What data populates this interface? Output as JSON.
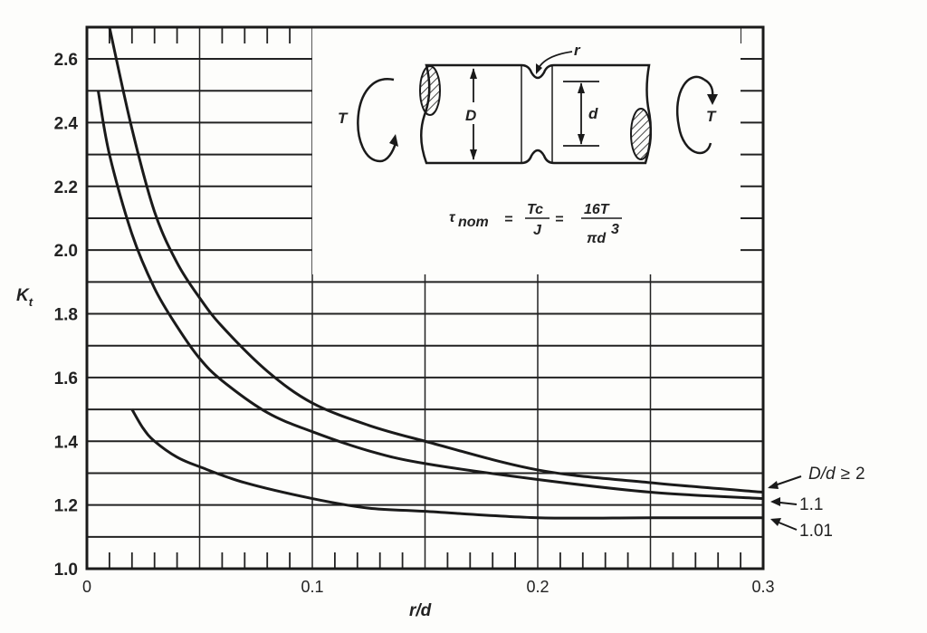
{
  "chart_data": {
    "type": "line",
    "title": "",
    "xlabel": "r/d",
    "ylabel": "K_t",
    "xlim": [
      0,
      0.3
    ],
    "ylim": [
      1.0,
      2.7
    ],
    "x_ticks": [
      "0",
      "0.1",
      "0.2",
      "0.3"
    ],
    "y_ticks": [
      "1.0",
      "1.2",
      "1.4",
      "1.6",
      "1.8",
      "2.0",
      "2.2",
      "2.4",
      "2.6"
    ],
    "grid": true,
    "legend_position": "right-annotations",
    "series": [
      {
        "name": "D/d ≥ 2",
        "label": "D/d ≥ 2",
        "x": [
          0.01,
          0.02,
          0.03,
          0.04,
          0.05,
          0.06,
          0.08,
          0.1,
          0.125,
          0.15,
          0.2,
          0.25,
          0.3
        ],
        "values": [
          2.7,
          2.38,
          2.12,
          1.96,
          1.85,
          1.76,
          1.62,
          1.52,
          1.45,
          1.4,
          1.31,
          1.27,
          1.24
        ]
      },
      {
        "name": "D/d = 1.1",
        "label": "1.1",
        "x": [
          0.005,
          0.01,
          0.02,
          0.03,
          0.04,
          0.05,
          0.06,
          0.08,
          0.1,
          0.125,
          0.15,
          0.2,
          0.25,
          0.3
        ],
        "values": [
          2.5,
          2.3,
          2.05,
          1.88,
          1.76,
          1.66,
          1.59,
          1.49,
          1.43,
          1.37,
          1.33,
          1.28,
          1.24,
          1.22
        ]
      },
      {
        "name": "D/d = 1.01",
        "label": "1.01",
        "x": [
          0.02,
          0.025,
          0.03,
          0.04,
          0.05,
          0.07,
          0.1,
          0.125,
          0.15,
          0.2,
          0.25,
          0.3
        ],
        "values": [
          1.5,
          1.44,
          1.4,
          1.35,
          1.32,
          1.27,
          1.22,
          1.19,
          1.18,
          1.16,
          1.16,
          1.16
        ]
      }
    ],
    "annotations": {
      "formula": "τ_nom = Tc/J = 16T/(πd³)",
      "diagram_labels": [
        "T",
        "D",
        "r",
        "d",
        "T"
      ]
    }
  },
  "axes": {
    "x_title": "r/d",
    "y_title_main": "K",
    "y_title_sub": "t",
    "x_tick_labels": [
      "0",
      "0.1",
      "0.2",
      "0.3"
    ],
    "y_tick_labels": [
      "1.0",
      "1.2",
      "1.4",
      "1.6",
      "1.8",
      "2.0",
      "2.2",
      "2.4",
      "2.6"
    ]
  },
  "legend": {
    "items": [
      {
        "prefix": "D/d",
        "rel": "≥",
        "value": "2"
      },
      {
        "text": "1.1"
      },
      {
        "text": "1.01"
      }
    ]
  },
  "inset": {
    "torque_left": "T",
    "torque_right": "T",
    "big_diameter": "D",
    "small_diameter": "d",
    "fillet_radius": "r",
    "formula": {
      "lhs": "τ",
      "lhs_sub": "nom",
      "eq1": "=",
      "frac1_num": "Tc",
      "frac1_den": "J",
      "eq2": "=",
      "frac2_num": "16T",
      "frac2_den": "πd",
      "frac2_den_sup": "3"
    }
  },
  "colors": {
    "line": "#1a1a1a",
    "grid": "#222222",
    "background": "#fdfdfb"
  }
}
